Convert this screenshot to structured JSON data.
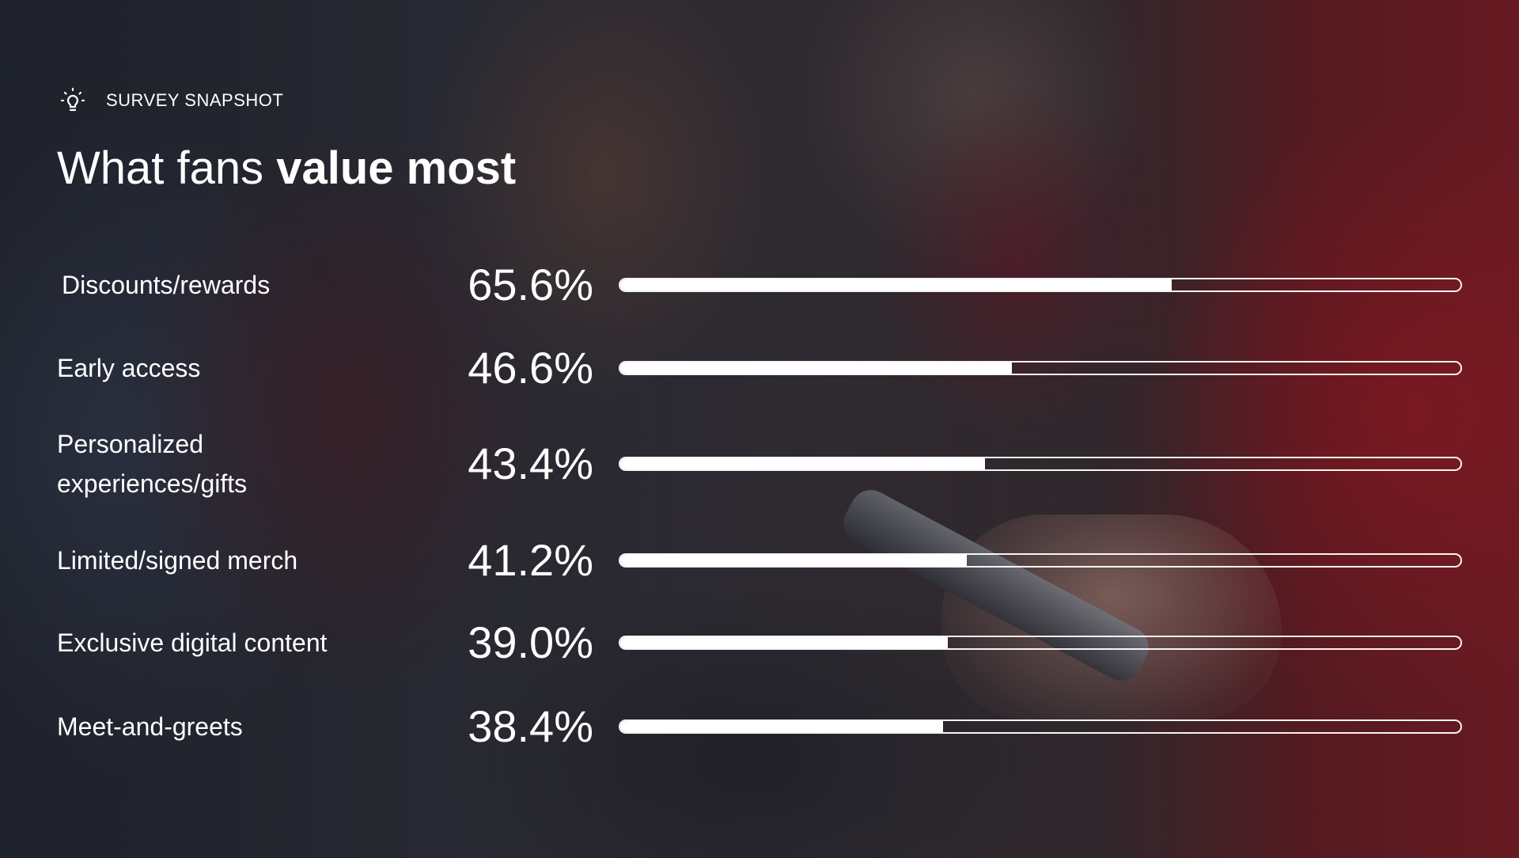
{
  "header": {
    "icon": "lightbulb-icon",
    "eyebrow": "SURVEY SNAPSHOT",
    "title_prefix": "What fans ",
    "title_emphasis": "value most"
  },
  "chart_data": {
    "type": "bar",
    "orientation": "horizontal",
    "title": "What fans value most",
    "xlabel": "",
    "ylabel": "",
    "xlim": [
      0,
      100
    ],
    "categories": [
      "Discounts/rewards",
      "Early access",
      "Personalized experiences/gifts",
      "Limited/signed merch",
      "Exclusive digital content",
      "Meet-and-greets"
    ],
    "values": [
      65.6,
      46.6,
      43.4,
      41.2,
      39.0,
      38.4
    ],
    "value_labels": [
      "65.6%",
      "46.6%",
      "43.4%",
      "41.2%",
      "39.0%",
      "38.4%"
    ],
    "unit": "%"
  },
  "colors": {
    "text": "#ffffff",
    "bar_fill": "#ffffff",
    "bar_outline": "#ffffff"
  }
}
